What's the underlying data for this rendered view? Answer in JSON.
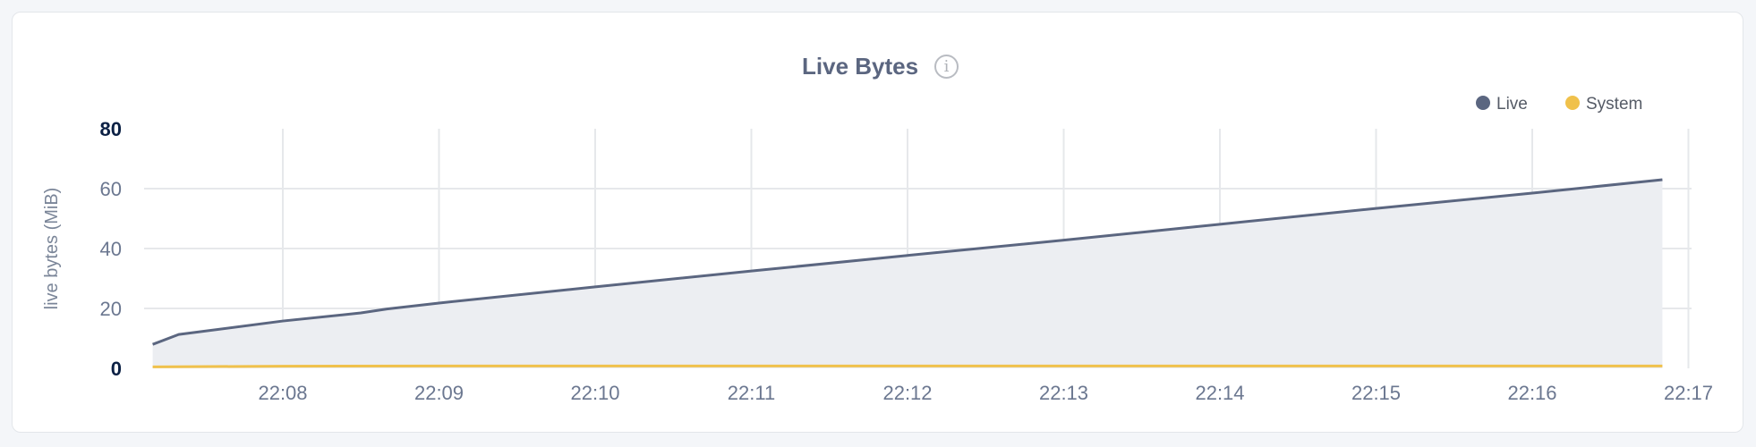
{
  "chart_data": {
    "type": "area",
    "title": "Live Bytes",
    "info_icon": "info-circle-icon",
    "ylabel": "live bytes (MiB)",
    "xlabel": "",
    "ylim": [
      0,
      80
    ],
    "y_ticks": [
      "0",
      "20",
      "40",
      "60",
      "80"
    ],
    "x_ticks": [
      "22:08",
      "22:09",
      "22:10",
      "22:11",
      "22:12",
      "22:13",
      "22:14",
      "22:15",
      "22:16",
      "22:17"
    ],
    "grid": true,
    "legend_position": "top-right",
    "series": [
      {
        "name": "Live",
        "color": "#5b6680",
        "fill": "#eceef2",
        "points": [
          [
            "22:07:10",
            8.0
          ],
          [
            "22:07:20",
            11.3
          ],
          [
            "22:08:00",
            15.8
          ],
          [
            "22:08:30",
            18.5
          ],
          [
            "22:08:40",
            19.8
          ],
          [
            "22:09:00",
            21.8
          ],
          [
            "22:10:00",
            27.2
          ],
          [
            "22:11:00",
            32.5
          ],
          [
            "22:12:00",
            37.7
          ],
          [
            "22:13:00",
            42.8
          ],
          [
            "22:14:00",
            48.1
          ],
          [
            "22:15:00",
            53.4
          ],
          [
            "22:16:00",
            58.5
          ],
          [
            "22:16:50",
            63.0
          ]
        ]
      },
      {
        "name": "System",
        "color": "#f0c14b",
        "points": [
          [
            "22:07:10",
            0.5
          ],
          [
            "22:08:00",
            0.7
          ],
          [
            "22:09:00",
            0.8
          ],
          [
            "22:16:50",
            0.8
          ]
        ]
      }
    ]
  }
}
